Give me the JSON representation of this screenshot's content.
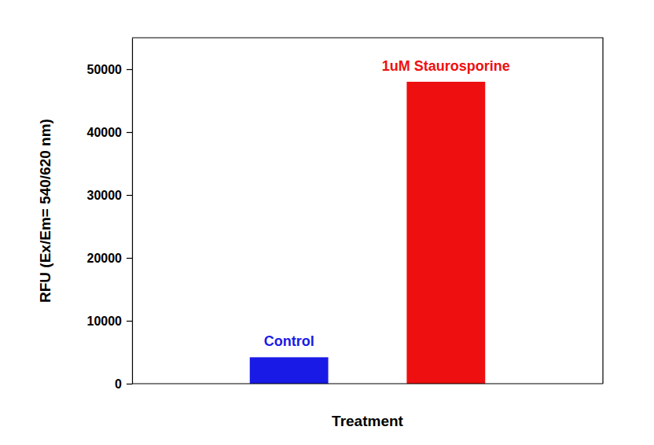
{
  "chart_data": {
    "type": "bar",
    "x_label": "Treatment",
    "y_label": "RFU (Ex/Em= 540/620 nm)",
    "categories": [
      "Control",
      "1uM Staurosporine"
    ],
    "values": [
      4200,
      48000
    ],
    "colors": [
      "#1a1ae6",
      "#ee1010"
    ],
    "ylim": [
      0,
      55000
    ],
    "yticks": [
      0,
      10000,
      20000,
      30000,
      40000,
      50000
    ],
    "tick_labels": "y",
    "grid": false
  }
}
